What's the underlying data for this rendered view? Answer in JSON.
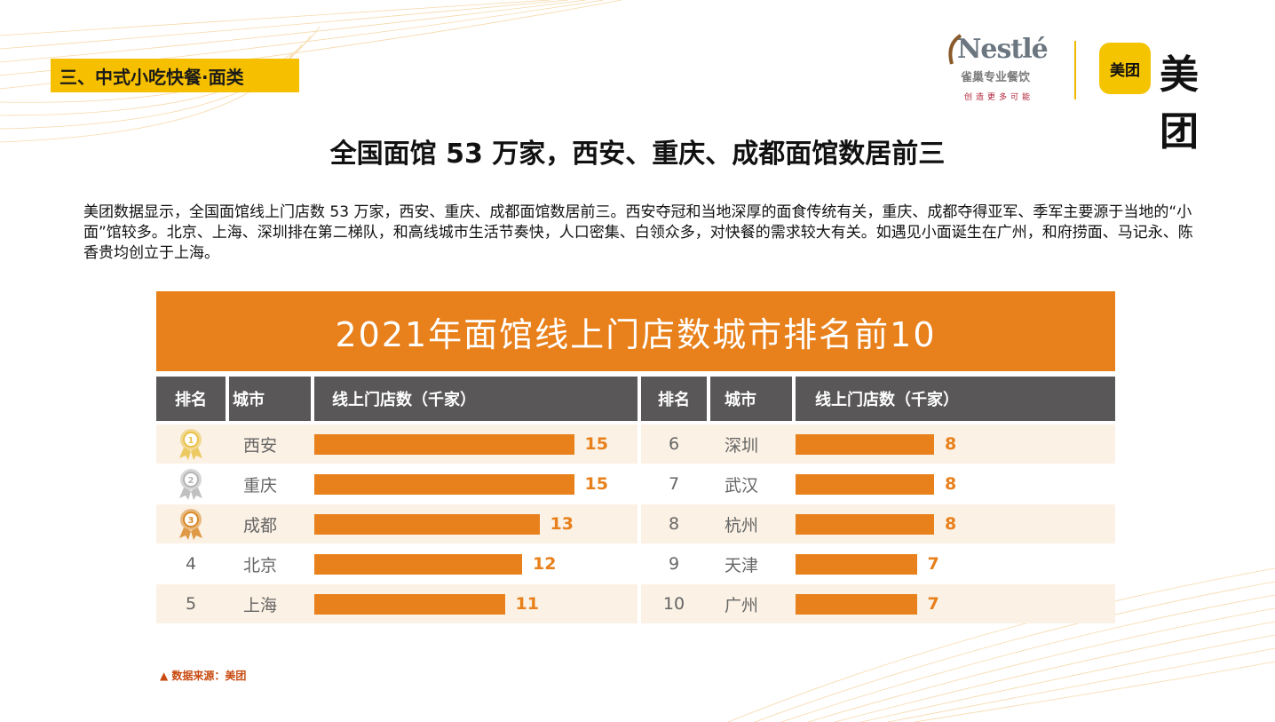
{
  "section_tag": "三、中式小吃快餐·面类",
  "logos": {
    "nestle_word": "Nestlé",
    "nestle_sub": "雀巢专业餐饮",
    "nestle_slogan": "创造更多可能",
    "meituan_box": "美团",
    "meituan_word": "美团"
  },
  "main_title": "全国面馆 53 万家，西安、重庆、成都面馆数居前三",
  "intro": "美团数据显示，全国面馆线上门店数 53 万家，西安、重庆、成都面馆数居前三。西安夺冠和当地深厚的面食传统有关，重庆、成都夺得亚军、季军主要源于当地的“小面”馆较多。北京、上海、深圳排在第二梯队，和高线城市生活节奏快，人口密集、白领众多，对快餐的需求较大有关。如遇见小面诞生在广州，和府捞面、马记永、陈香贵均创立于上海。",
  "chart_data": {
    "type": "bar",
    "title": "2021年面馆线上门店数城市排名前10",
    "headers": {
      "rank": "排名",
      "city": "城市",
      "value": "线上门店数（千家）"
    },
    "ranks": [
      "1",
      "2",
      "3",
      "4",
      "5",
      "6",
      "7",
      "8",
      "9",
      "10"
    ],
    "categories": [
      "西安",
      "重庆",
      "成都",
      "北京",
      "上海",
      "深圳",
      "武汉",
      "杭州",
      "天津",
      "广州"
    ],
    "values": [
      15,
      15,
      13,
      12,
      11,
      8,
      8,
      8,
      7,
      7
    ],
    "ylabel": "线上门店数（千家）",
    "colors": {
      "bar": "#e8801b",
      "header": "#595757",
      "row_alt": "#fbf1e4",
      "gold": "#e9c24a",
      "silver": "#b5b5b5",
      "bronze": "#d98a2a"
    },
    "medals": [
      "gold-medal-icon",
      "silver-medal-icon",
      "bronze-medal-icon"
    ]
  },
  "source": "▲ 数据来源：美团"
}
